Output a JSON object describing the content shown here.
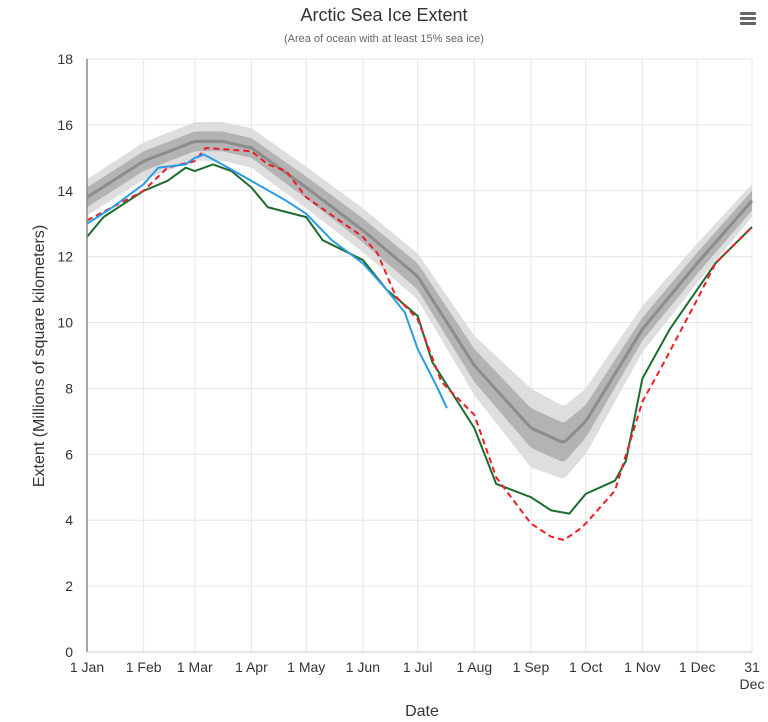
{
  "chart_data": {
    "type": "line",
    "title": "Arctic Sea Ice Extent",
    "subtitle": "(Area of ocean with at least 15% sea ice)",
    "xlabel": "Date",
    "ylabel": "Extent (Millions of square kilometers)",
    "xlim_day_of_year": [
      1,
      365
    ],
    "ylim": [
      0,
      18
    ],
    "yticks": [
      0,
      2,
      4,
      6,
      8,
      10,
      12,
      14,
      16,
      18
    ],
    "xticks": [
      {
        "day": 1,
        "label": "1 Jan"
      },
      {
        "day": 32,
        "label": "1 Feb"
      },
      {
        "day": 60,
        "label": "1 Mar"
      },
      {
        "day": 91,
        "label": "1 Apr"
      },
      {
        "day": 121,
        "label": "1 May"
      },
      {
        "day": 152,
        "label": "1 Jun"
      },
      {
        "day": 182,
        "label": "1 Jul"
      },
      {
        "day": 213,
        "label": "1 Aug"
      },
      {
        "day": 244,
        "label": "1 Sep"
      },
      {
        "day": 274,
        "label": "1 Oct"
      },
      {
        "day": 305,
        "label": "1 Nov"
      },
      {
        "day": 335,
        "label": "1 Dec"
      },
      {
        "day": 365,
        "label": "31",
        "label2": "Dec"
      }
    ],
    "grid": true,
    "legend": "none",
    "colors": {
      "median": "#8c8c8c",
      "inner_band": "#b3b3b3",
      "outer_band": "#dedede",
      "green": "#1e6b2e",
      "red": "#ee1c25",
      "blue": "#2a9be8"
    },
    "median": {
      "x": [
        1,
        32,
        60,
        75,
        91,
        121,
        152,
        182,
        213,
        244,
        262,
        274,
        305,
        335,
        365
      ],
      "y": [
        13.8,
        14.9,
        15.5,
        15.5,
        15.3,
        14.1,
        12.8,
        11.4,
        8.7,
        6.8,
        6.35,
        7.0,
        9.8,
        11.8,
        13.7
      ]
    },
    "inner_band_halfwidth": {
      "x": [
        1,
        91,
        182,
        213,
        244,
        262,
        274,
        305,
        365
      ],
      "y": [
        0.3,
        0.3,
        0.4,
        0.5,
        0.6,
        0.6,
        0.5,
        0.35,
        0.3
      ]
    },
    "outer_band_halfwidth": {
      "x": [
        1,
        91,
        182,
        213,
        244,
        262,
        274,
        305,
        365
      ],
      "y": [
        0.55,
        0.6,
        0.7,
        0.9,
        1.2,
        1.1,
        1.0,
        0.7,
        0.5
      ]
    },
    "series": [
      {
        "style": "solid",
        "color": "#1e6b2e",
        "x": [
          1,
          10,
          32,
          45,
          55,
          60,
          70,
          80,
          91,
          100,
          121,
          130,
          152,
          165,
          182,
          190,
          213,
          225,
          244,
          255,
          265,
          274,
          290,
          296,
          305,
          320,
          335,
          345,
          365
        ],
        "y": [
          12.6,
          13.2,
          14.0,
          14.3,
          14.7,
          14.6,
          14.8,
          14.6,
          14.1,
          13.5,
          13.2,
          12.5,
          11.9,
          11.0,
          10.2,
          8.8,
          6.8,
          5.1,
          4.7,
          4.3,
          4.2,
          4.8,
          5.2,
          5.8,
          8.3,
          9.8,
          11.0,
          11.8,
          12.9
        ]
      },
      {
        "style": "dashed",
        "color": "#ee1c25",
        "x": [
          1,
          32,
          45,
          60,
          66,
          91,
          100,
          110,
          121,
          152,
          160,
          170,
          182,
          195,
          213,
          225,
          244,
          255,
          262,
          270,
          274,
          290,
          305,
          315,
          335,
          345,
          365
        ],
        "y": [
          13.1,
          14.0,
          14.7,
          14.9,
          15.3,
          15.2,
          14.8,
          14.6,
          13.8,
          12.6,
          12.1,
          10.8,
          10.1,
          8.2,
          7.2,
          5.3,
          3.9,
          3.5,
          3.4,
          3.7,
          3.9,
          4.9,
          7.6,
          8.6,
          10.7,
          11.8,
          12.9
        ]
      },
      {
        "style": "solid",
        "color": "#2a9be8",
        "x": [
          1,
          15,
          32,
          40,
          55,
          60,
          65,
          75,
          91,
          110,
          121,
          135,
          152,
          165,
          175,
          182,
          193,
          198
        ],
        "y": [
          13.0,
          13.5,
          14.2,
          14.7,
          14.8,
          15.0,
          15.1,
          14.8,
          14.3,
          13.7,
          13.3,
          12.5,
          11.8,
          11.0,
          10.3,
          9.2,
          8.0,
          7.4
        ]
      }
    ]
  }
}
